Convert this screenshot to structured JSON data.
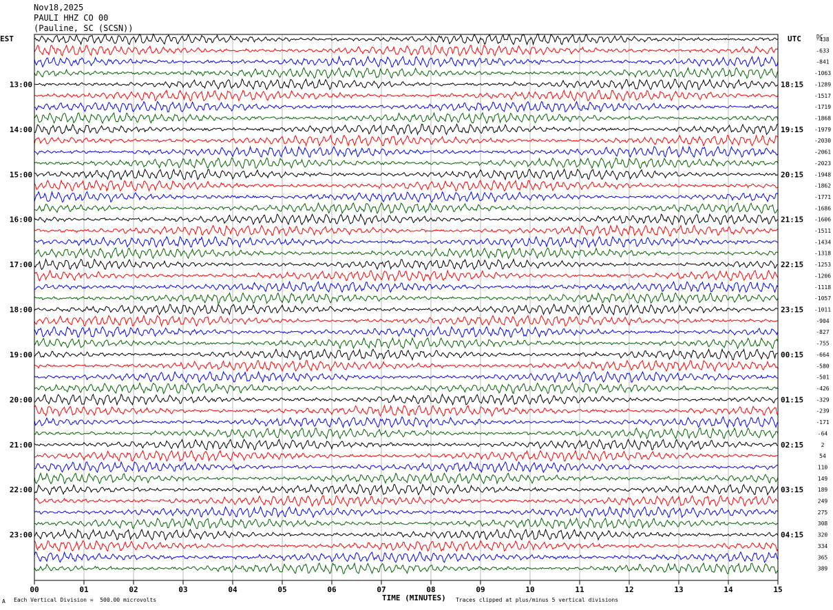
{
  "header": {
    "date": "Nov18,2025",
    "station": "PAULI HHZ CO 00",
    "location": "(Pauline, SC (SCSN))"
  },
  "left_tz": "EST",
  "right_tz": "UTC",
  "dc_label": "DC",
  "footer": {
    "scale_note": "Each Vertical Division =  500.00 microvolts",
    "clip_note": "Traces clipped at plus/minus 5 vertical divisions",
    "corner_mark": "A"
  },
  "chart_data": {
    "type": "line",
    "xlabel": "TIME (MINUTES)",
    "xlim": [
      0,
      15
    ],
    "x_ticks": [
      "00",
      "01",
      "02",
      "03",
      "04",
      "05",
      "06",
      "07",
      "08",
      "09",
      "10",
      "11",
      "12",
      "13",
      "14",
      "15"
    ],
    "left_hour_labels": [
      "13:00",
      "14:00",
      "15:00",
      "16:00",
      "17:00",
      "18:00",
      "19:00",
      "20:00",
      "21:00",
      "22:00",
      "23:00"
    ],
    "right_hour_labels": [
      "18:15",
      "19:15",
      "20:15",
      "21:15",
      "22:15",
      "23:15",
      "00:15",
      "01:15",
      "02:15",
      "03:15",
      "04:15"
    ],
    "trace_colors": [
      "#000000",
      "#ff0000",
      "#0000ff",
      "#006400"
    ],
    "trace_count": 48,
    "dc_offsets": [
      "-438",
      "-633",
      "-841",
      "-1063",
      "-1289",
      "-1517",
      "-1719",
      "-1868",
      "-1979",
      "-2030",
      "-2061",
      "-2023",
      "-1948",
      "-1862",
      "-1771",
      "-1686",
      "-1606",
      "-1511",
      "-1434",
      "-1318",
      "-1253",
      "-1206",
      "-1118",
      "-1057",
      "-1011",
      "-904",
      "-827",
      "-755",
      "-664",
      "-580",
      "-501",
      "-426",
      "-329",
      "-239",
      "-171",
      "-64",
      "2",
      "54",
      "110",
      "149",
      "189",
      "249",
      "275",
      "308",
      "320",
      "334",
      "365",
      "389"
    ]
  }
}
